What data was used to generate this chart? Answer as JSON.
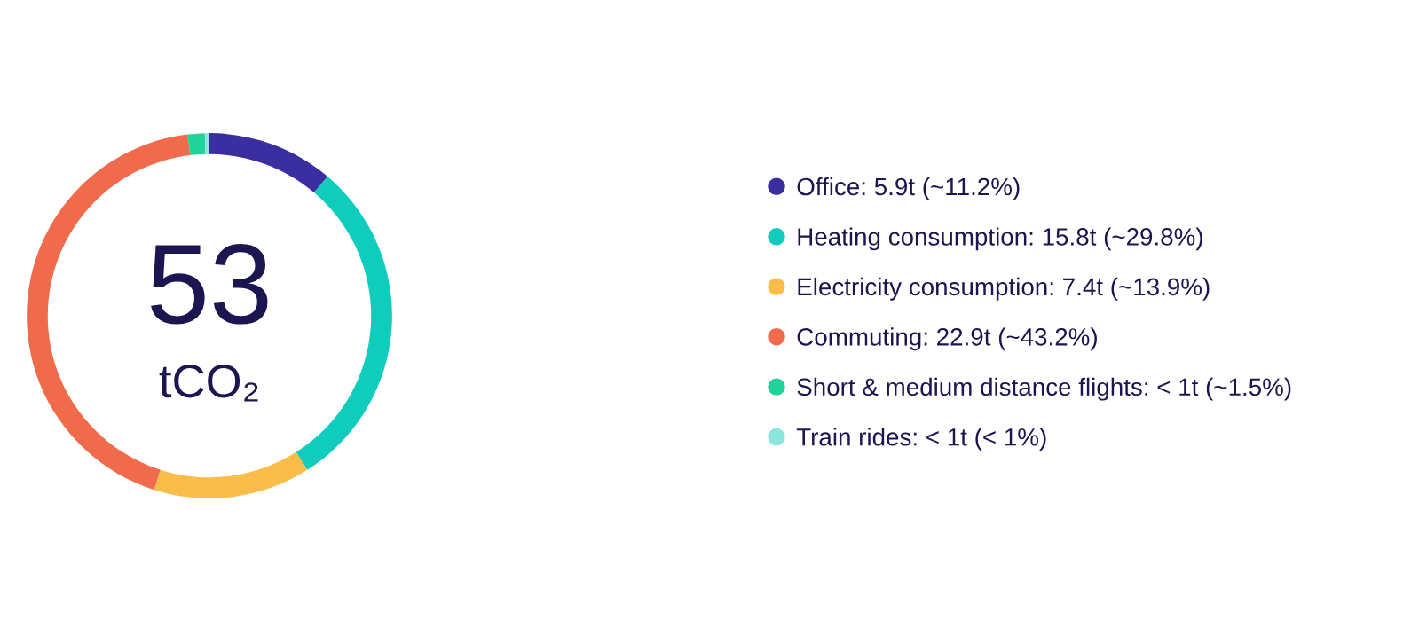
{
  "chart_data": {
    "type": "donut",
    "categories": [
      "Office: 5.9t (~11.2%)",
      "Heating consumption: 15.8t (~29.8%)",
      "Electricity consumption: 7.4t (~13.9%)",
      "Commuting: 22.9t (~43.2%)",
      "Short & medium distance flights: < 1t (~1.5%)",
      "Train rides: < 1t (< 1%)"
    ],
    "values": [
      11.2,
      29.8,
      13.9,
      43.2,
      1.5,
      0.4
    ],
    "colors": [
      "#3a2ea0",
      "#10ccbd",
      "#fbbd4a",
      "#ef6b4c",
      "#20d39a",
      "#8ae6dc"
    ],
    "annotations": [
      "53",
      "tCO₂"
    ],
    "legend": "right"
  }
}
